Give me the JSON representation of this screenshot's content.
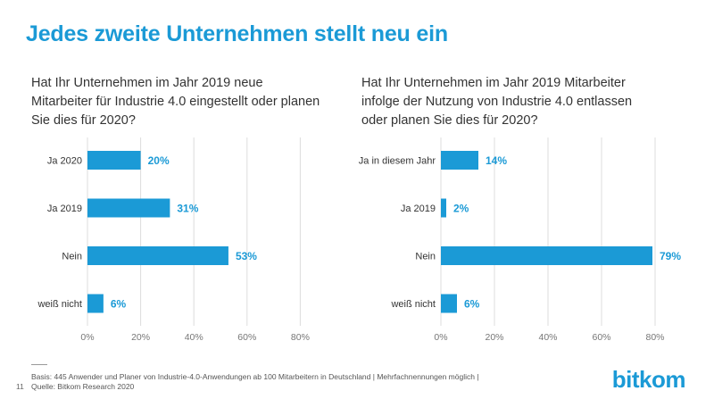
{
  "title": "Jedes zweite Unternehmen stellt neu ein",
  "page_number": "11",
  "footer": {
    "basis": "Basis: 445 Anwender und Planer von Industrie-4.0-Anwendungen ab 100 Mitarbeitern in Deutschland | Mehrfachnennungen möglich |",
    "source": "Quelle: Bitkom Research 2020"
  },
  "logo": "bitkom",
  "colors": {
    "accent": "#1b9ad6",
    "text": "#333333",
    "grid": "#dddddd"
  },
  "chart_data": [
    {
      "type": "bar",
      "orientation": "horizontal",
      "title": "Hat Ihr Unternehmen im Jahr 2019 neue Mitarbeiter für Industrie 4.0 eingestellt oder planen Sie dies für 2020?",
      "categories": [
        "Ja 2020",
        "Ja 2019",
        "Nein",
        "weiß nicht"
      ],
      "values": [
        20,
        31,
        53,
        6
      ],
      "value_labels": [
        "20%",
        "31%",
        "53%",
        "6%"
      ],
      "xlim": [
        0,
        80
      ],
      "ticks": [
        0,
        20,
        40,
        60,
        80
      ],
      "tick_labels": [
        "0%",
        "20%",
        "40%",
        "60%",
        "80%"
      ],
      "grid": true
    },
    {
      "type": "bar",
      "orientation": "horizontal",
      "title": "Hat Ihr Unternehmen im Jahr 2019 Mitarbeiter infolge der Nutzung von Industrie 4.0 entlassen oder planen Sie dies für 2020?",
      "categories": [
        "Ja in diesem Jahr",
        "Ja 2019",
        "Nein",
        "weiß nicht"
      ],
      "values": [
        14,
        2,
        79,
        6
      ],
      "value_labels": [
        "14%",
        "2%",
        "79%",
        "6%"
      ],
      "xlim": [
        0,
        80
      ],
      "ticks": [
        0,
        20,
        40,
        60,
        80
      ],
      "tick_labels": [
        "0%",
        "20%",
        "40%",
        "60%",
        "80%"
      ],
      "grid": true
    }
  ]
}
